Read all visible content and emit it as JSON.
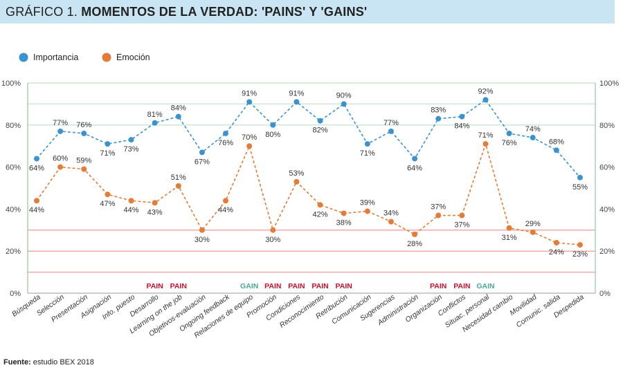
{
  "header": {
    "prefix": "GRÁFICO 1.",
    "title": "MOMENTOS DE LA VERDAD: 'PAINS' Y 'GAINS'"
  },
  "source": {
    "label": "Fuente:",
    "text": "estudio BEX 2018"
  },
  "colors": {
    "importancia": "#3a93cf",
    "emocion": "#e37c37",
    "pain": "#c8102e",
    "gain": "#4aa89a",
    "gridline": "#cfe6d4",
    "redline": "#f1a9a9",
    "titlebar": "#c9e4f2"
  },
  "chart_data": {
    "type": "line",
    "legend": {
      "position": "top-left",
      "entries": [
        "Importancia",
        "Emoción"
      ]
    },
    "categories": [
      "Búsqueda",
      "Selección",
      "Presentación",
      "Asignación",
      "Info. puesto",
      "Desarrollo",
      "Learning on the job",
      "Objetivos-evaluación",
      "Ongoing feedback",
      "Relaciones de equipo",
      "Promoción",
      "Condiciones",
      "Reconocimiento",
      "Retribución",
      "Comunicación",
      "Sugerencias",
      "Administración",
      "Organización",
      "Conflictos",
      "Situac. personal",
      "Necesidad cambio",
      "Movilidad",
      "Comunic. salida",
      "Despedida"
    ],
    "series": [
      {
        "name": "Importancia",
        "color": "#3a93cf",
        "values": [
          64,
          77,
          76,
          71,
          73,
          81,
          84,
          67,
          76,
          91,
          80,
          91,
          82,
          90,
          71,
          77,
          64,
          83,
          84,
          92,
          76,
          74,
          68,
          55
        ],
        "labels": [
          "64%",
          "77%",
          "76%",
          "71%",
          "73%",
          "81%",
          "84%",
          "67%",
          "76%",
          "91%",
          "80%",
          "91%",
          "82%",
          "90%",
          "71%",
          "77%",
          "64%",
          "83%",
          "84%",
          "92%",
          "76%",
          "74%",
          "68%",
          "55%"
        ]
      },
      {
        "name": "Emoción",
        "color": "#e37c37",
        "values": [
          44,
          60,
          59,
          47,
          44,
          43,
          51,
          30,
          44,
          70,
          30,
          53,
          42,
          38,
          39,
          34,
          28,
          37,
          37,
          71,
          31,
          29,
          24,
          23
        ],
        "labels": [
          "44%",
          "60%",
          "59%",
          "47%",
          "44%",
          "43%",
          "51%",
          "30%",
          "44%",
          "70%",
          "30%",
          "53%",
          "42%",
          "38%",
          "39%",
          "34%",
          "28%",
          "37%",
          "37%",
          "71%",
          "31%",
          "29%",
          "24%",
          "23%"
        ]
      }
    ],
    "tags": [
      {
        "index": 5,
        "text": "PAIN",
        "kind": "pain"
      },
      {
        "index": 6,
        "text": "PAIN",
        "kind": "pain"
      },
      {
        "index": 9,
        "text": "GAIN",
        "kind": "gain"
      },
      {
        "index": 10,
        "text": "PAIN",
        "kind": "pain"
      },
      {
        "index": 11,
        "text": "PAIN",
        "kind": "pain"
      },
      {
        "index": 12,
        "text": "PAIN",
        "kind": "pain"
      },
      {
        "index": 13,
        "text": "PAIN",
        "kind": "pain"
      },
      {
        "index": 17,
        "text": "PAIN",
        "kind": "pain"
      },
      {
        "index": 18,
        "text": "PAIN",
        "kind": "pain"
      },
      {
        "index": 19,
        "text": "GAIN",
        "kind": "gain"
      }
    ],
    "y_ticks": [
      {
        "value": 0,
        "label": "0%"
      },
      {
        "value": 20,
        "label": "20%"
      },
      {
        "value": 40,
        "label": "40%"
      },
      {
        "value": 60,
        "label": "60%"
      },
      {
        "value": 80,
        "label": "80%"
      },
      {
        "value": 100,
        "label": "100%"
      }
    ],
    "ylim": [
      0,
      100
    ],
    "y_axis_sides": [
      "left",
      "right"
    ],
    "reference_lines_green": [
      80,
      90,
      100
    ],
    "reference_lines_red": [
      10,
      20,
      30
    ]
  }
}
